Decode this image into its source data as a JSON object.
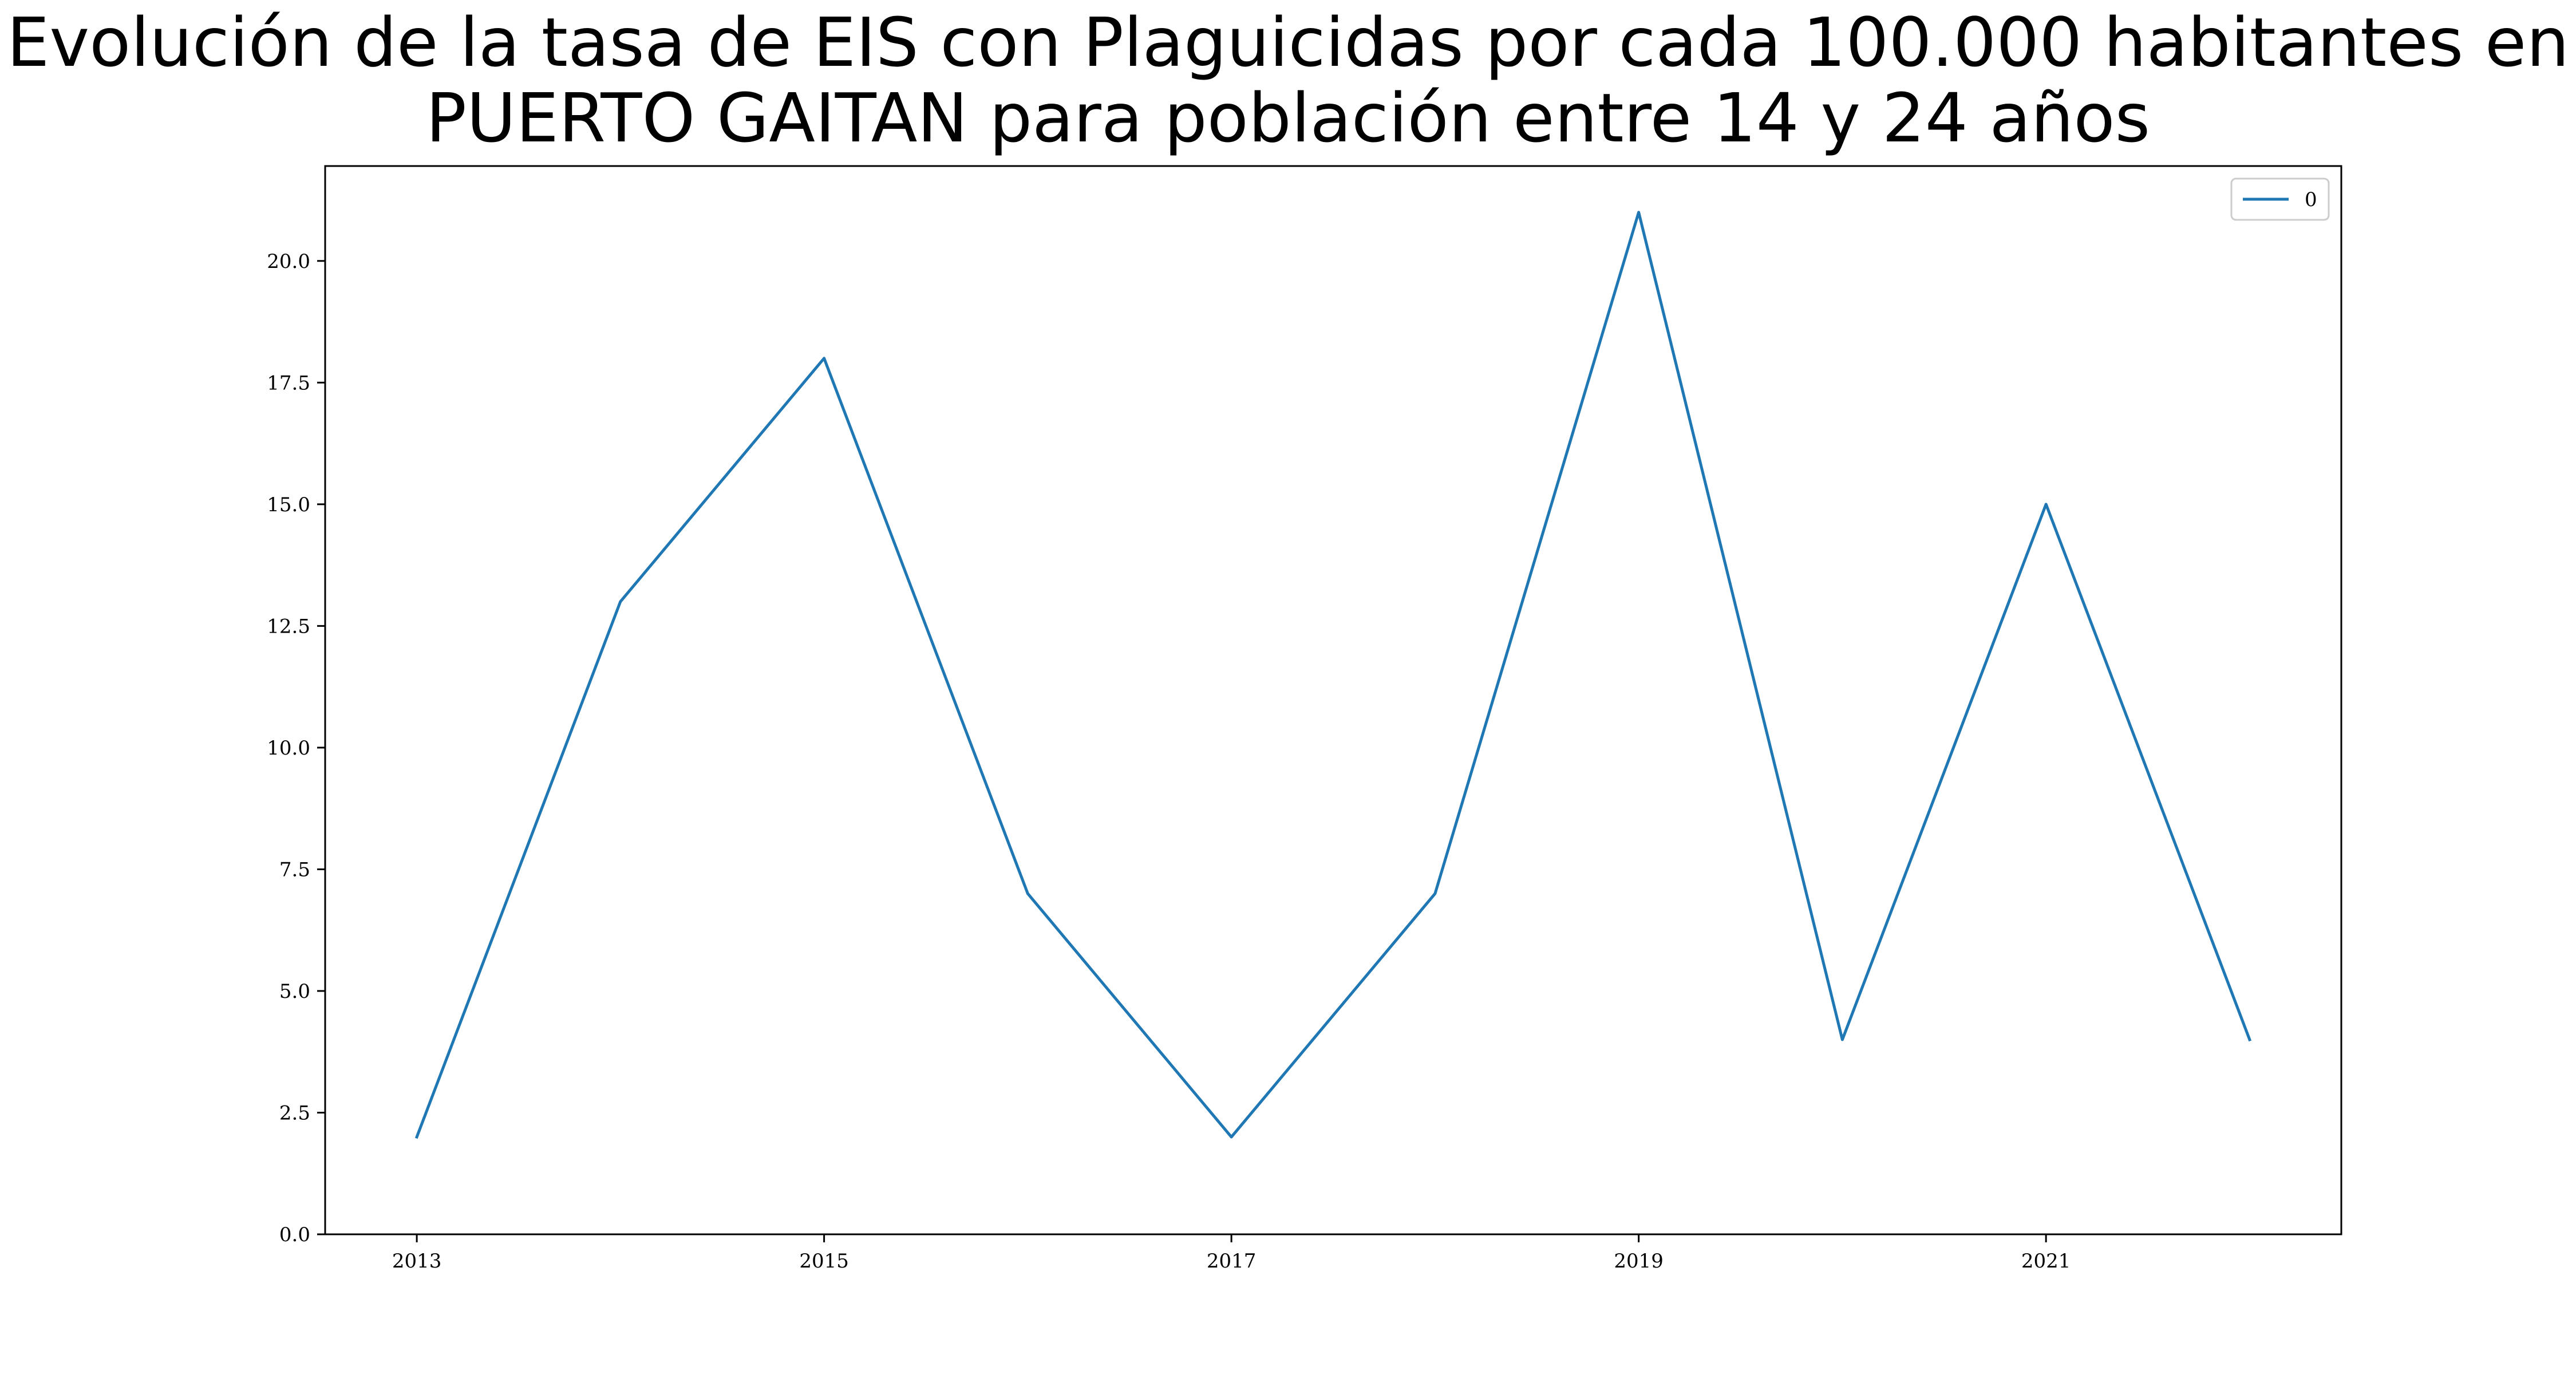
{
  "chart_data": {
    "type": "line",
    "title_lines": [
      "Evolución de la tasa de EIS con Plaguicidas por cada 100.000 habitantes en",
      "PUERTO GAITAN para población entre 14 y 24 años"
    ],
    "xlabel": "",
    "ylabel": "",
    "x": [
      2013,
      2014,
      2015,
      2016,
      2017,
      2018,
      2019,
      2020,
      2021,
      2022
    ],
    "series": [
      {
        "name": "0",
        "color": "#1f77b4",
        "values": [
          2,
          13,
          18,
          7,
          2,
          7,
          21,
          4,
          15,
          4
        ]
      }
    ],
    "x_ticks": [
      2013,
      2015,
      2017,
      2019,
      2021
    ],
    "y_ticks": [
      "0.0",
      "2.5",
      "5.0",
      "7.5",
      "10.0",
      "12.5",
      "15.0",
      "17.5",
      "20.0"
    ],
    "xlim": [
      2012.55,
      2022.45
    ],
    "ylim": [
      0,
      21.95
    ],
    "grid": false,
    "legend_position": "upper right"
  }
}
